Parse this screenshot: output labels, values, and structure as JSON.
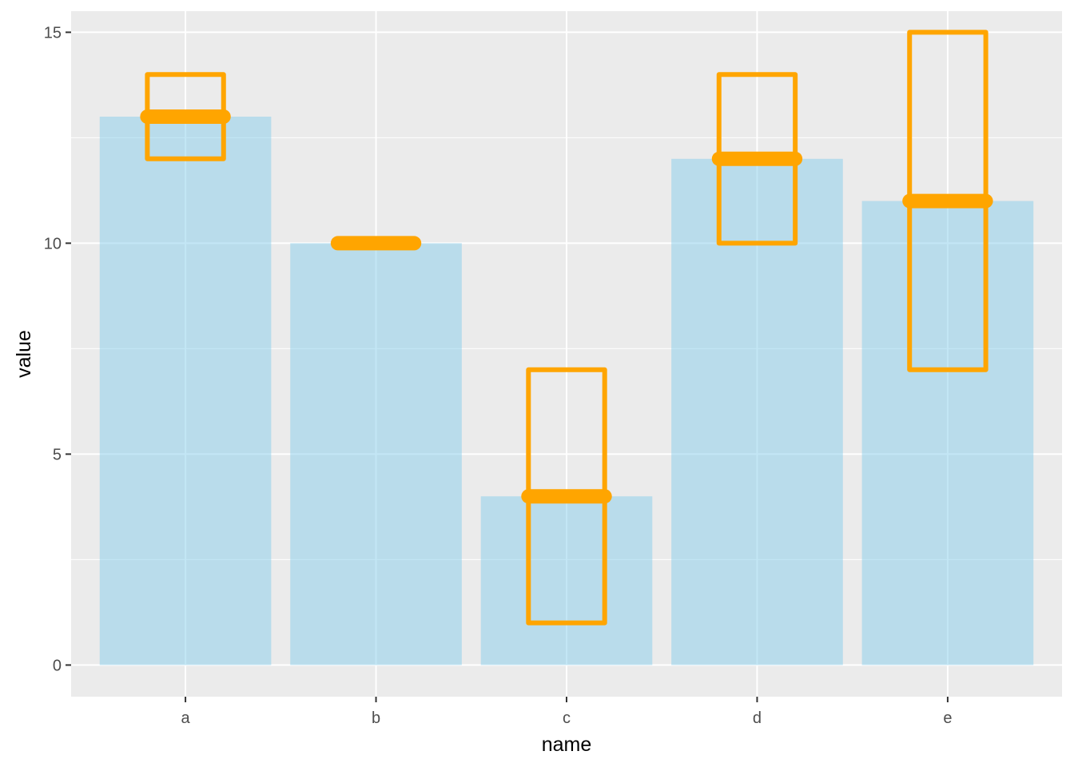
{
  "chart_data": {
    "type": "bar",
    "xlabel": "name",
    "ylabel": "value",
    "ylim": [
      -0.75,
      15.5
    ],
    "y_ticks": [
      0,
      5,
      10,
      15
    ],
    "y_tick_labels": [
      "0",
      "5",
      "10",
      "15"
    ],
    "grid": true,
    "categories": [
      "a",
      "b",
      "c",
      "d",
      "e"
    ],
    "values": [
      13,
      10,
      4,
      12,
      11
    ],
    "crossbars": [
      {
        "category": "a",
        "y": 13,
        "ymin": 12,
        "ymax": 14
      },
      {
        "category": "b",
        "y": 10,
        "ymin": 10,
        "ymax": 10
      },
      {
        "category": "c",
        "y": 4,
        "ymin": 1,
        "ymax": 7
      },
      {
        "category": "d",
        "y": 12,
        "ymin": 10,
        "ymax": 14
      },
      {
        "category": "e",
        "y": 11,
        "ymin": 7,
        "ymax": 15
      }
    ],
    "colors": {
      "bar": "#87ceeb",
      "crossbar": "#ffa500",
      "panel": "#ebebeb",
      "grid": "#ffffff"
    }
  }
}
